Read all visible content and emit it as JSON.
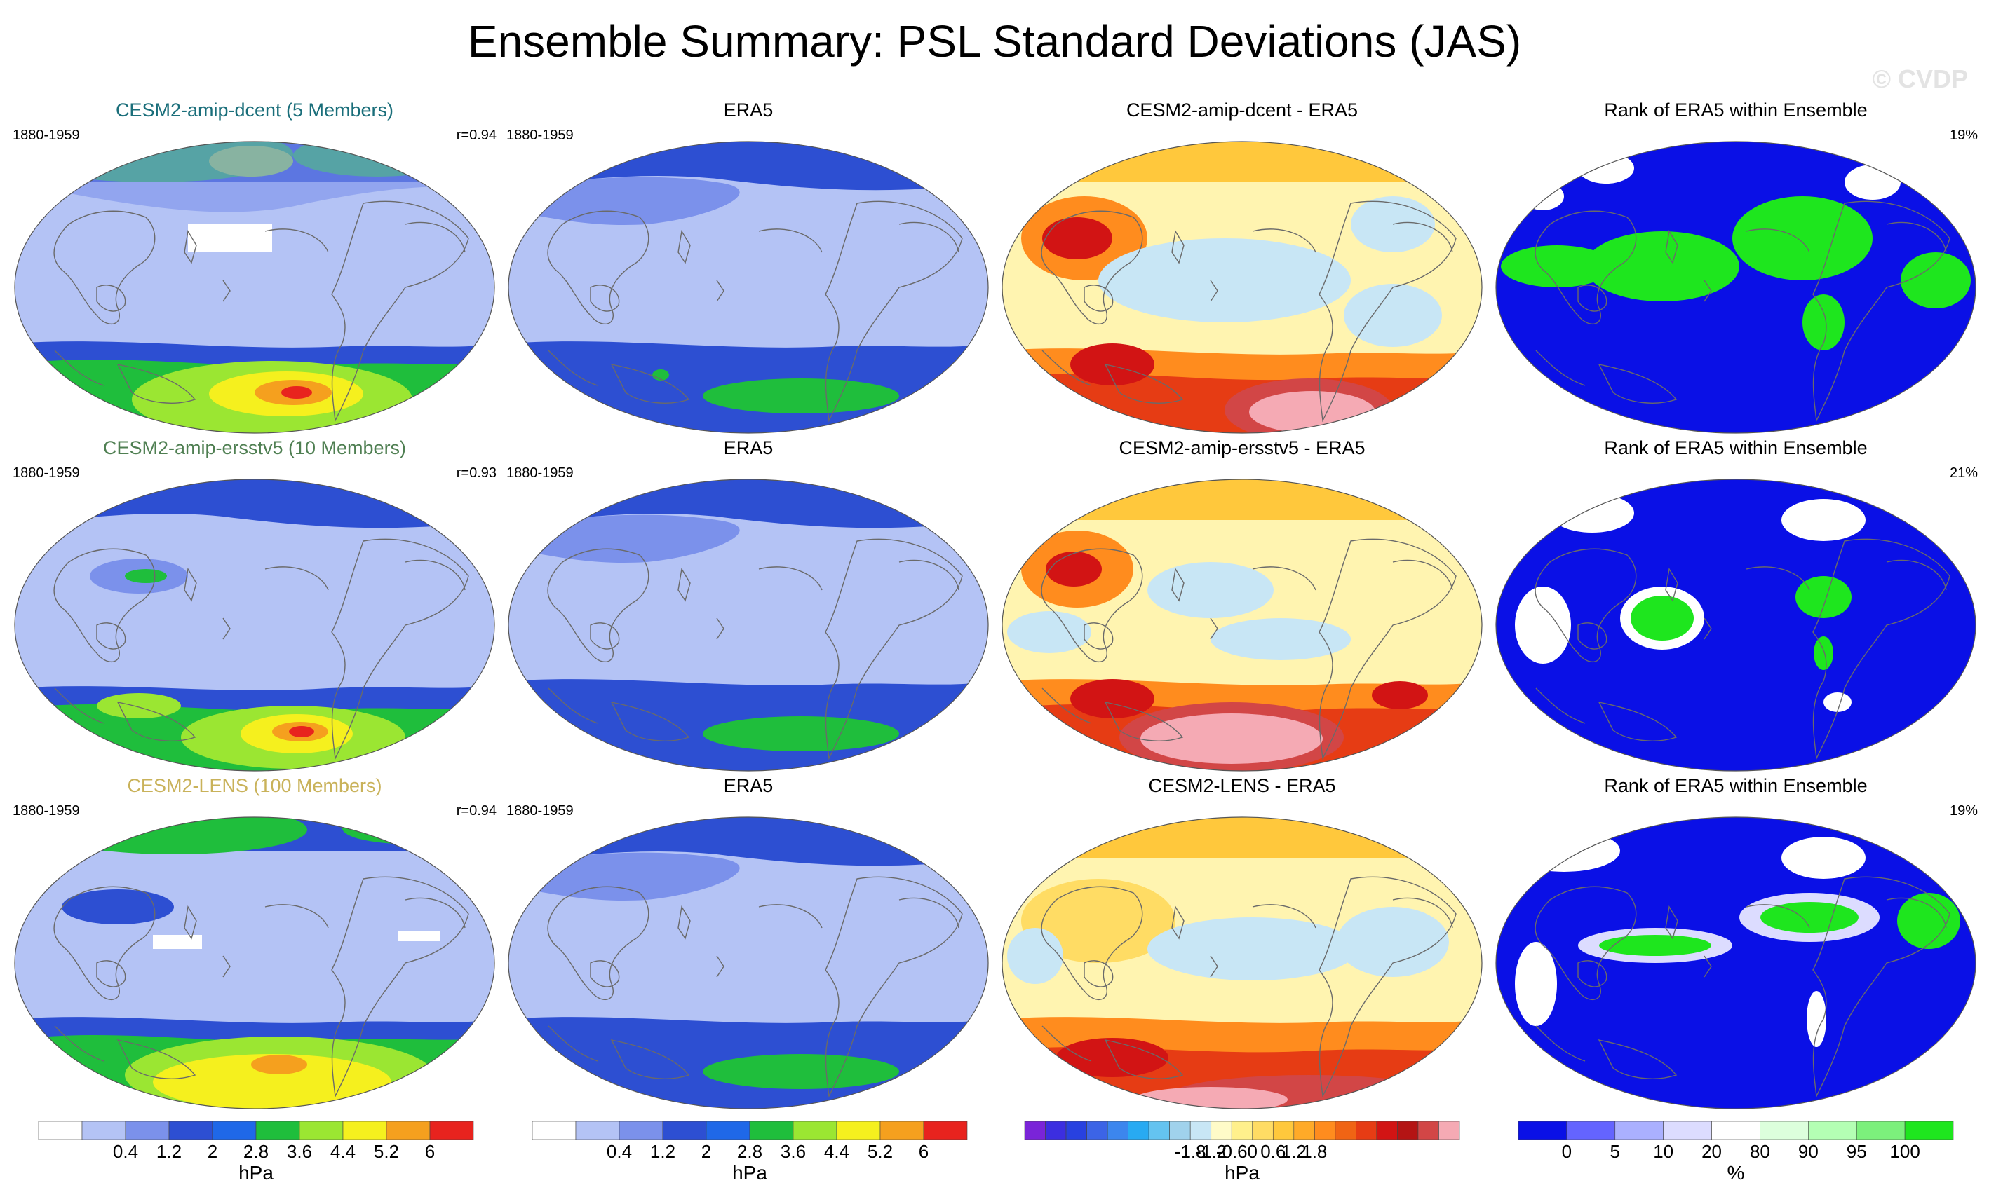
{
  "title": "Ensemble Summary: PSL Standard Deviations (JAS)",
  "watermark": "© CVDP",
  "rows": [
    {
      "model": {
        "title": "CESM2-amip-dcent (5 Members)",
        "title_color": "#1a6e7a",
        "years": "1880-1959",
        "r": "r=0.94"
      },
      "obs": {
        "title": "ERA5",
        "years": "1880-1959"
      },
      "diff": {
        "title": "CESM2-amip-dcent - ERA5"
      },
      "rank": {
        "title": "Rank of ERA5 within Ensemble",
        "pct": "19%"
      }
    },
    {
      "model": {
        "title": "CESM2-amip-ersstv5 (10 Members)",
        "title_color": "#4f7f52",
        "years": "1880-1959",
        "r": "r=0.93"
      },
      "obs": {
        "title": "ERA5",
        "years": "1880-1959"
      },
      "diff": {
        "title": "CESM2-amip-ersstv5 - ERA5"
      },
      "rank": {
        "title": "Rank of ERA5 within Ensemble",
        "pct": "21%"
      }
    },
    {
      "model": {
        "title": "CESM2-LENS (100 Members)",
        "title_color": "#c9b25a",
        "years": "1880-1959",
        "r": "r=0.94"
      },
      "obs": {
        "title": "ERA5",
        "years": "1880-1959"
      },
      "diff": {
        "title": "CESM2-LENS - ERA5"
      },
      "rank": {
        "title": "Rank of ERA5 within Ensemble",
        "pct": "19%"
      }
    }
  ],
  "colorbars": {
    "sd": {
      "unit": "hPa",
      "ticks": [
        "0.4",
        "1.2",
        "2",
        "2.8",
        "3.6",
        "4.4",
        "5.2",
        "6"
      ],
      "colors": [
        "#ffffff",
        "#b4c3f5",
        "#7b91eb",
        "#2d4fd2",
        "#1f68e8",
        "#1fbe3c",
        "#9be632",
        "#f5f01e",
        "#f5a01e",
        "#e8231e"
      ]
    },
    "diff": {
      "unit": "hPa",
      "ticks": [
        "-1.8",
        "-1.2",
        "-0.6",
        "0",
        "0.6",
        "1.2",
        "1.8"
      ],
      "colors": [
        "#7a24d8",
        "#3c2ee0",
        "#2841e0",
        "#3c64e6",
        "#3c86ee",
        "#28aaf2",
        "#64c3f0",
        "#a0d2ec",
        "#c8e6f5",
        "#fffbc8",
        "#fff08c",
        "#ffdc64",
        "#ffc83c",
        "#ffaa28",
        "#ff8c1e",
        "#f06414",
        "#e63c14",
        "#d21414",
        "#b41414",
        "#d24646",
        "#f5aab4"
      ]
    },
    "rank": {
      "unit": "%",
      "ticks": [
        "0",
        "5",
        "10",
        "20",
        "80",
        "90",
        "95",
        "100"
      ],
      "colors": [
        "#0a10e6",
        "#6464ff",
        "#aab0ff",
        "#dcdcff",
        "#ffffff",
        "#dcffdc",
        "#b4ffb4",
        "#7cf07c",
        "#1ee61e"
      ]
    }
  },
  "colors": {
    "sd_base": "#b4c3f5",
    "sd_bands": [
      "#7b91eb",
      "#2d4fd2",
      "#1fbe3c",
      "#9be632",
      "#f5f01e",
      "#f5a01e",
      "#e8231e"
    ],
    "diff_base": "#fff4b0",
    "rank_base": "#0a10e6",
    "rank_green": "#1ee61e"
  }
}
